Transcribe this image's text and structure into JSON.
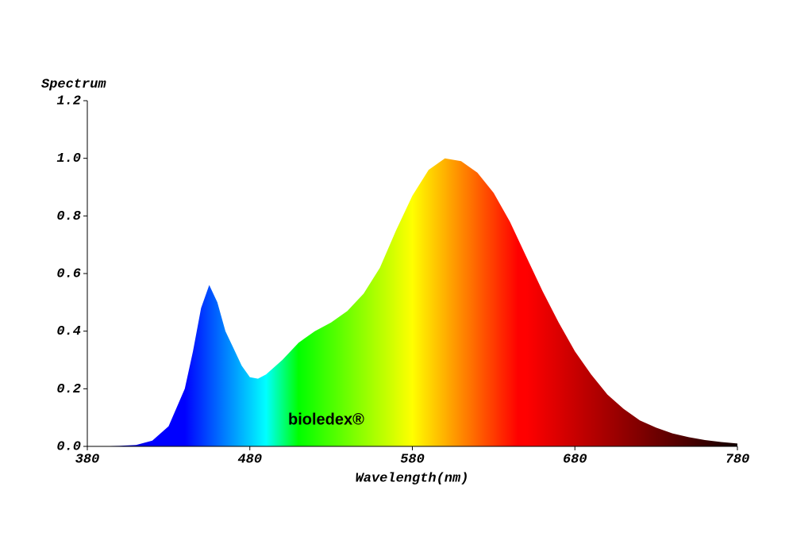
{
  "chart_data": {
    "type": "area",
    "y_label": "Spectrum",
    "x_label": "Wavelength(nm)",
    "watermark": "bioledex®",
    "x": [
      380,
      400,
      410,
      420,
      430,
      440,
      445,
      450,
      455,
      460,
      465,
      470,
      475,
      480,
      485,
      490,
      500,
      510,
      520,
      530,
      540,
      550,
      560,
      570,
      580,
      590,
      600,
      610,
      620,
      630,
      640,
      650,
      660,
      670,
      680,
      690,
      700,
      710,
      720,
      730,
      740,
      750,
      760,
      770,
      780
    ],
    "y": [
      0,
      0.002,
      0.005,
      0.02,
      0.07,
      0.2,
      0.33,
      0.48,
      0.56,
      0.5,
      0.4,
      0.34,
      0.28,
      0.24,
      0.235,
      0.25,
      0.3,
      0.36,
      0.4,
      0.43,
      0.47,
      0.53,
      0.62,
      0.75,
      0.87,
      0.96,
      1.0,
      0.99,
      0.95,
      0.88,
      0.78,
      0.66,
      0.54,
      0.43,
      0.33,
      0.25,
      0.18,
      0.13,
      0.09,
      0.065,
      0.045,
      0.032,
      0.022,
      0.015,
      0.01
    ],
    "xlim": [
      380,
      780
    ],
    "ylim": [
      0,
      1.2
    ],
    "xticks": [
      380,
      480,
      580,
      680,
      780
    ],
    "yticks": [
      {
        "value": 0,
        "label": "0.0"
      },
      0.2,
      0.4,
      0.6,
      0.8,
      {
        "value": 1,
        "label": "1.0"
      },
      1.2
    ],
    "fill": "spectral",
    "watermark_color": "#1e9a3c"
  }
}
